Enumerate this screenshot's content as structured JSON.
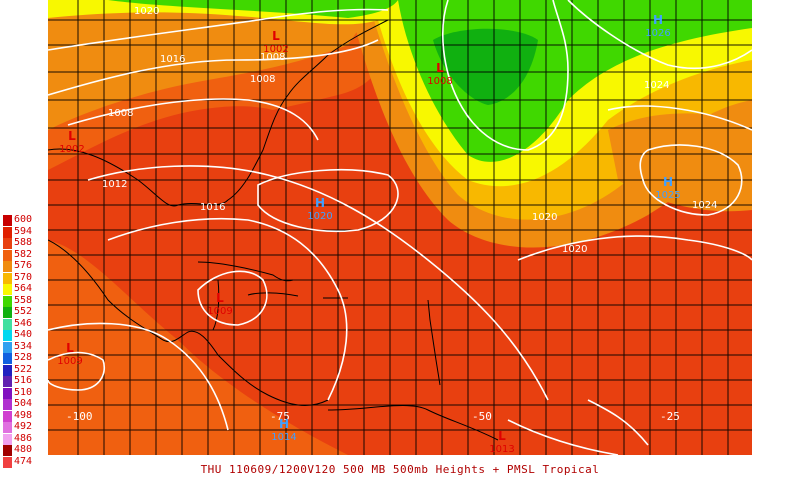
{
  "caption": "THU 110609/1200V120  500 MB 500mb Heights + PMSL Tropical",
  "legend": [
    {
      "label": "600",
      "color": "#c80000"
    },
    {
      "label": "594",
      "color": "#e02000"
    },
    {
      "label": "588",
      "color": "#e84010"
    },
    {
      "label": "582",
      "color": "#f06010"
    },
    {
      "label": "576",
      "color": "#f08c10"
    },
    {
      "label": "570",
      "color": "#f8b800"
    },
    {
      "label": "564",
      "color": "#f8f800"
    },
    {
      "label": "558",
      "color": "#40d800"
    },
    {
      "label": "552",
      "color": "#10b010"
    },
    {
      "label": "546",
      "color": "#40e0a0"
    },
    {
      "label": "540",
      "color": "#00d8f0"
    },
    {
      "label": "534",
      "color": "#30a0f0"
    },
    {
      "label": "528",
      "color": "#1060e0"
    },
    {
      "label": "522",
      "color": "#2020c0"
    },
    {
      "label": "516",
      "color": "#6020b0"
    },
    {
      "label": "510",
      "color": "#8010c0"
    },
    {
      "label": "504",
      "color": "#b030d0"
    },
    {
      "label": "498",
      "color": "#d040d0"
    },
    {
      "label": "492",
      "color": "#e070e0"
    },
    {
      "label": "486",
      "color": "#f0a0f0"
    },
    {
      "label": "480",
      "color": "#a00000"
    },
    {
      "label": "474",
      "color": "#f04040"
    }
  ],
  "longitude_labels": [
    "-100",
    "-75",
    "-50",
    "-25"
  ],
  "pressure_centers": [
    {
      "type": "L",
      "value": "1002",
      "color": "#e00000"
    },
    {
      "type": "L",
      "value": "1008",
      "color": "#e00000"
    },
    {
      "type": "L",
      "value": "1002",
      "color": "#e00000"
    },
    {
      "type": "L",
      "value": "1009",
      "color": "#e00000"
    },
    {
      "type": "L",
      "value": "1009",
      "color": "#e00000"
    },
    {
      "type": "L",
      "value": "1013",
      "color": "#e00000"
    },
    {
      "type": "H",
      "value": "1020",
      "color": "#40a0ff"
    },
    {
      "type": "H",
      "value": "1026",
      "color": "#40a0ff"
    },
    {
      "type": "H",
      "value": "1025",
      "color": "#40a0ff"
    },
    {
      "type": "H",
      "value": "1014",
      "color": "#40a0ff"
    }
  ],
  "isobar_labels": [
    "1020",
    "1016",
    "1008",
    "1008",
    "1008",
    "1012",
    "1016",
    "1020",
    "1024",
    "1024",
    "1020"
  ]
}
